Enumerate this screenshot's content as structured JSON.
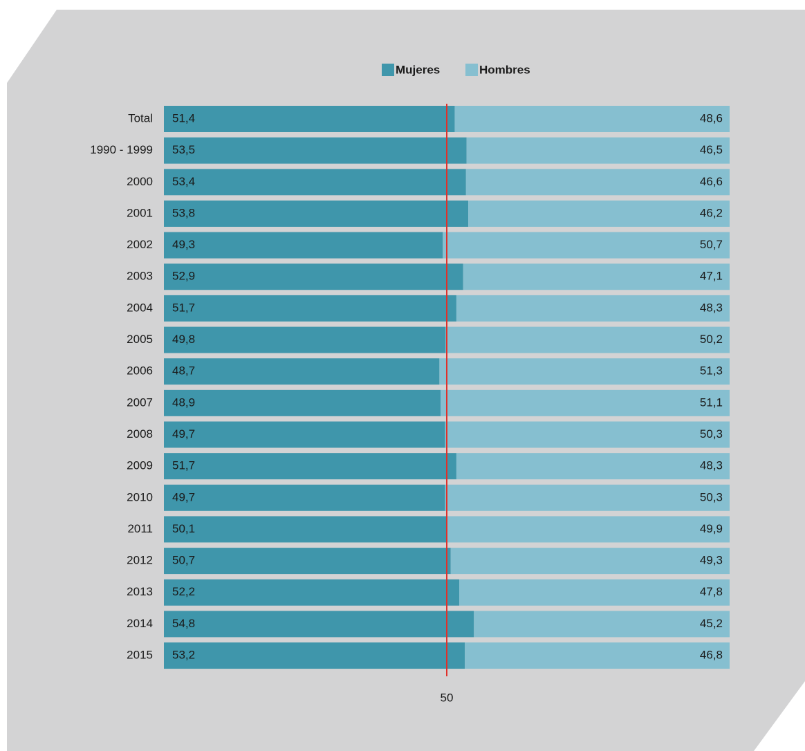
{
  "chart_data": {
    "type": "bar",
    "orientation": "horizontal",
    "stacked": true,
    "categories": [
      "Total",
      "1990 - 1999",
      "2000",
      "2001",
      "2002",
      "2003",
      "2004",
      "2005",
      "2006",
      "2007",
      "2008",
      "2009",
      "2010",
      "2011",
      "2012",
      "2013",
      "2014",
      "2015"
    ],
    "series": [
      {
        "name": "Mujeres",
        "color": "#3f96ab",
        "values": [
          51.4,
          53.5,
          53.4,
          53.8,
          49.3,
          52.9,
          51.7,
          49.8,
          48.7,
          48.9,
          49.7,
          51.7,
          49.7,
          50.1,
          50.7,
          52.2,
          54.8,
          53.2
        ],
        "value_labels": [
          "51,4",
          "53,5",
          "53,4",
          "53,8",
          "49,3",
          "52,9",
          "51,7",
          "49,8",
          "48,7",
          "48,9",
          "49,7",
          "51,7",
          "49,7",
          "50,1",
          "50,7",
          "52,2",
          "54,8",
          "53,2"
        ]
      },
      {
        "name": "Hombres",
        "color": "#86bfd0",
        "values": [
          48.6,
          46.5,
          46.6,
          46.2,
          50.7,
          47.1,
          48.3,
          50.2,
          51.3,
          51.1,
          50.3,
          48.3,
          50.3,
          49.9,
          49.3,
          47.8,
          45.2,
          46.8
        ],
        "value_labels": [
          "48,6",
          "46,5",
          "46,6",
          "46,2",
          "50,7",
          "47,1",
          "48,3",
          "50,2",
          "51,3",
          "51,1",
          "50,3",
          "48,3",
          "50,3",
          "49,9",
          "49,3",
          "47,8",
          "45,2",
          "46,8"
        ]
      }
    ],
    "xlim": [
      0,
      100
    ],
    "xticks": [
      50
    ],
    "reference_line_color": "#e0302a",
    "legend": "top"
  }
}
